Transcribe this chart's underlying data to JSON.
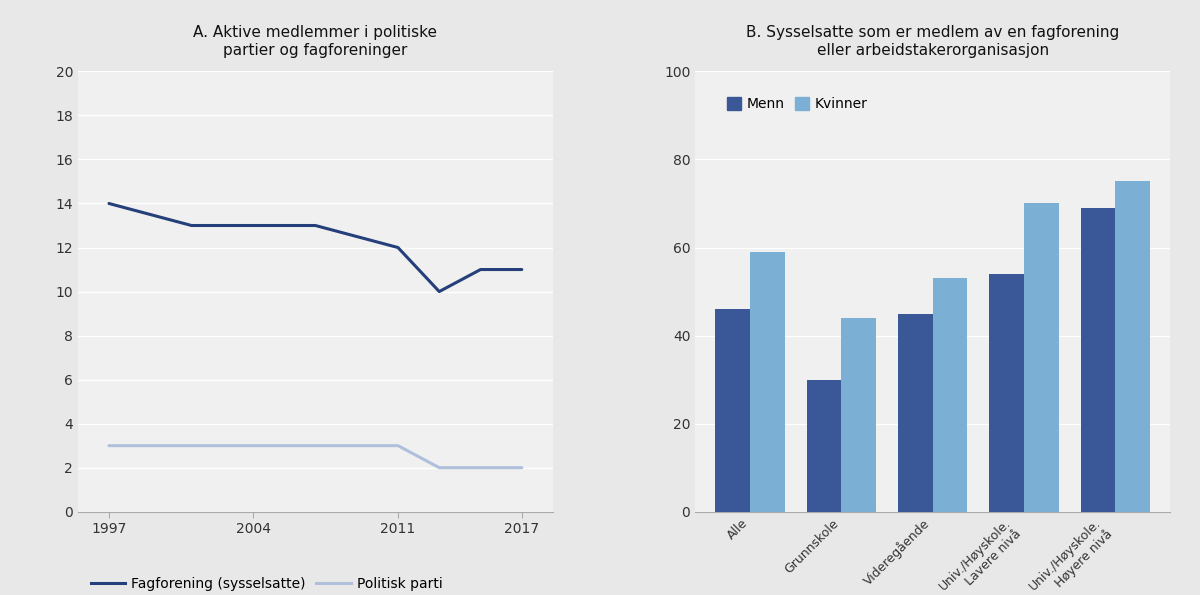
{
  "title_A": "A. Aktive medlemmer i politiske\npartier og fagforeninger",
  "title_B": "B. Sysselsatte som er medlem av en fagforening\neller arbeidstakerorganisasjon",
  "line_years": [
    1997,
    2001,
    2004,
    2007,
    2011,
    2013,
    2015,
    2017
  ],
  "fagforening": [
    14.0,
    13.0,
    13.0,
    13.0,
    12.0,
    10.0,
    11.0,
    11.0
  ],
  "politisk_parti": [
    3.0,
    3.0,
    3.0,
    3.0,
    3.0,
    2.0,
    2.0,
    2.0
  ],
  "line_color_fagforening": "#253f7a",
  "line_color_politisk": "#b0c0dc",
  "legend_fagforening": "Fagforening (sysselsatte)",
  "legend_politisk": "Politisk parti",
  "ylim_A": [
    0,
    20
  ],
  "yticks_A": [
    0,
    2,
    4,
    6,
    8,
    10,
    12,
    14,
    16,
    18,
    20
  ],
  "xticks_A": [
    1997,
    2004,
    2011,
    2017
  ],
  "bar_categories": [
    "Alle",
    "Grunnskole",
    "Videregående",
    "Univ./Høyskole.\nLavere nivå",
    "Univ./Høyskole.\nHøyere nivå"
  ],
  "menn": [
    46,
    30,
    45,
    54,
    69
  ],
  "kvinner": [
    59,
    44,
    53,
    70,
    75
  ],
  "bar_color_menn": "#3a5898",
  "bar_color_kvinner": "#7bafd4",
  "legend_menn": "Menn",
  "legend_kvinner": "Kvinner",
  "ylim_B": [
    0,
    100
  ],
  "yticks_B": [
    0,
    20,
    40,
    60,
    80,
    100
  ],
  "background_color": "#e8e8e8",
  "plot_bg_color": "#f0f0f0",
  "grid_color": "#ffffff",
  "spine_color": "#aaaaaa",
  "tick_color": "#333333",
  "title_fontsize": 11,
  "tick_fontsize": 10,
  "legend_fontsize": 10
}
